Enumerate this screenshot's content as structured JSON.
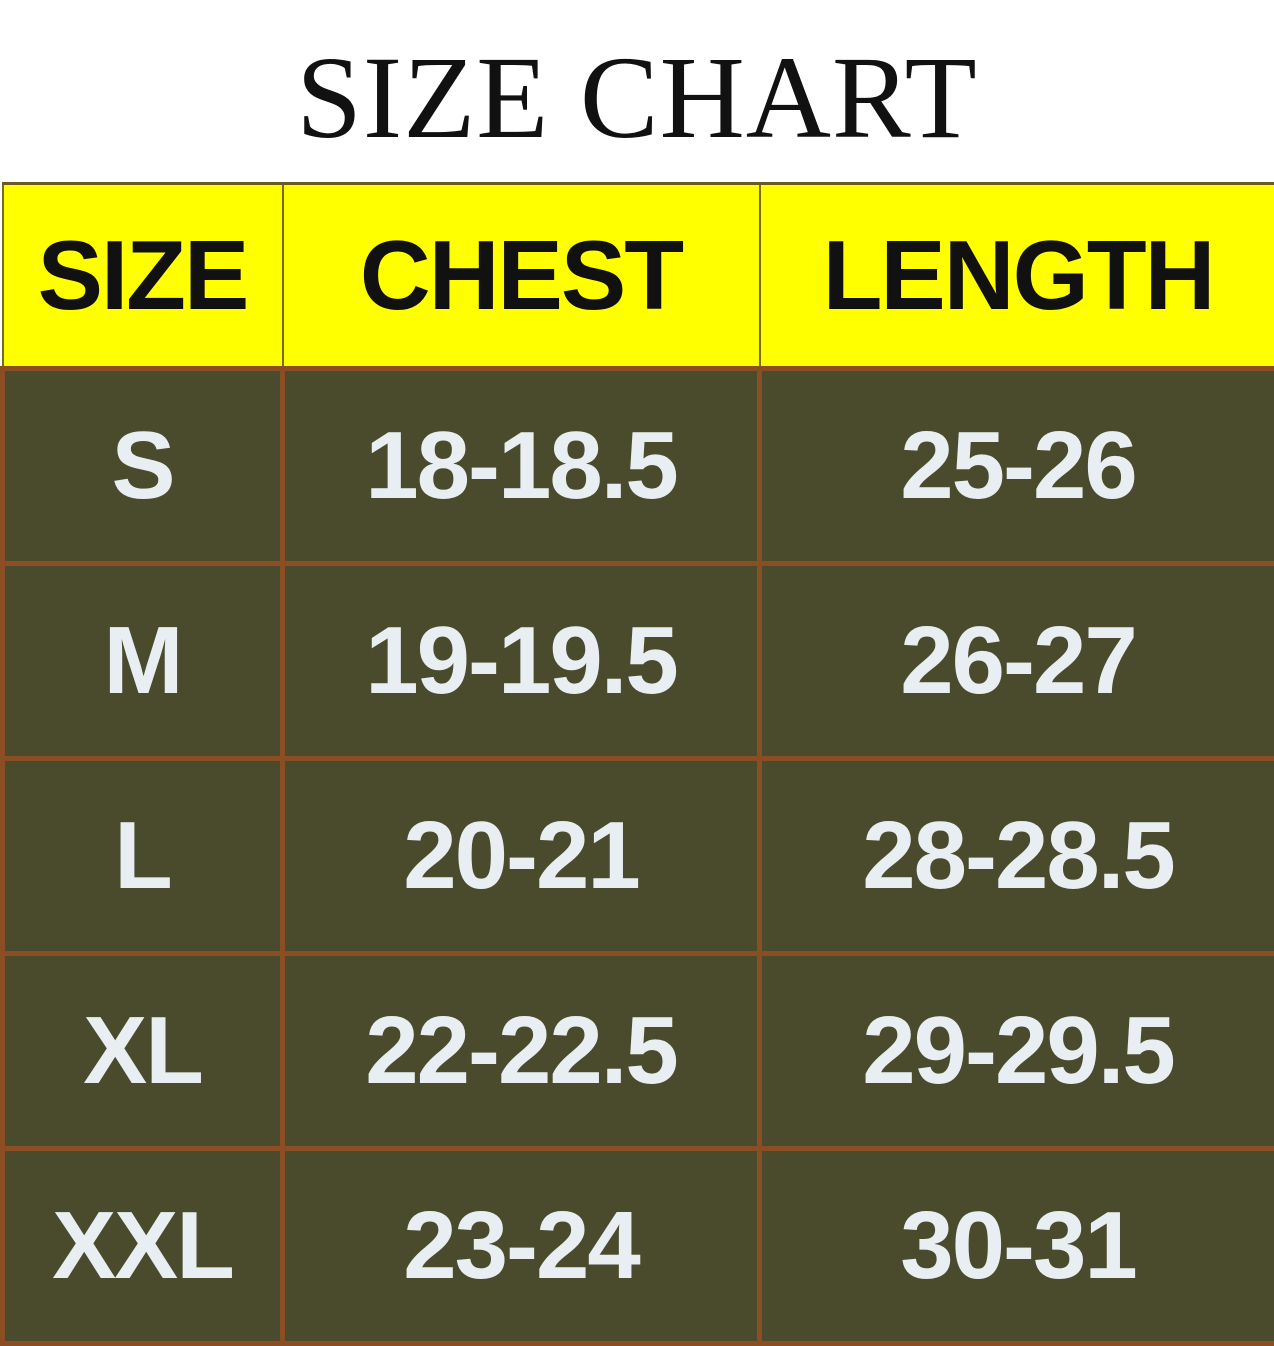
{
  "title": "SIZE CHART",
  "colors": {
    "header_bg": "#ffff00",
    "body_bg": "#4a4a2d",
    "border": "#8a4e22",
    "body_text": "#e8eef2"
  },
  "headers": [
    "SIZE",
    "CHEST",
    "LENGTH"
  ],
  "rows": [
    [
      "S",
      "18-18.5",
      "25-26"
    ],
    [
      "M",
      "19-19.5",
      "26-27"
    ],
    [
      "L",
      "20-21",
      "28-28.5"
    ],
    [
      "XL",
      "22-22.5",
      "29-29.5"
    ],
    [
      "XXL",
      "23-24",
      "30-31"
    ]
  ]
}
